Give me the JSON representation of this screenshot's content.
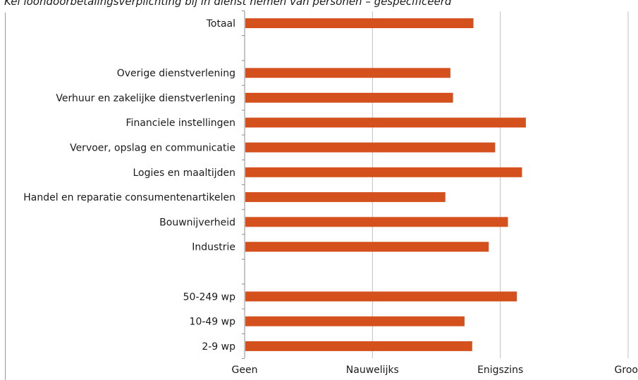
{
  "chart_data": {
    "type": "bar",
    "orientation": "horizontal",
    "title": "Kei loondoorbetalingsverplichting bij in dienst nemen van personen – gespecificeerd",
    "categories": [
      "Totaal",
      "",
      "Overige dienstverlening",
      "Verhuur en zakelijke dienstverlening",
      "Financiele instellingen",
      "Vervoer, opslag en communicatie",
      "Logies en maaltijden",
      "Handel en reparatie consumentenartikelen",
      "Bouwnijverheid",
      "Industrie",
      "",
      "50-249 wp",
      "10-49 wp",
      "2-9 wp"
    ],
    "values": [
      1.79,
      null,
      1.61,
      1.63,
      2.2,
      1.96,
      2.17,
      1.57,
      2.06,
      1.91,
      null,
      2.13,
      1.72,
      1.78
    ],
    "xlim": [
      0,
      3
    ],
    "x_ticks": [
      0,
      1,
      2,
      3
    ],
    "x_tick_labels": [
      "Geen",
      "Nauwelijks",
      "Enigszins",
      "Groot"
    ],
    "grid": "vertical",
    "bar_color": "#d4511e"
  }
}
